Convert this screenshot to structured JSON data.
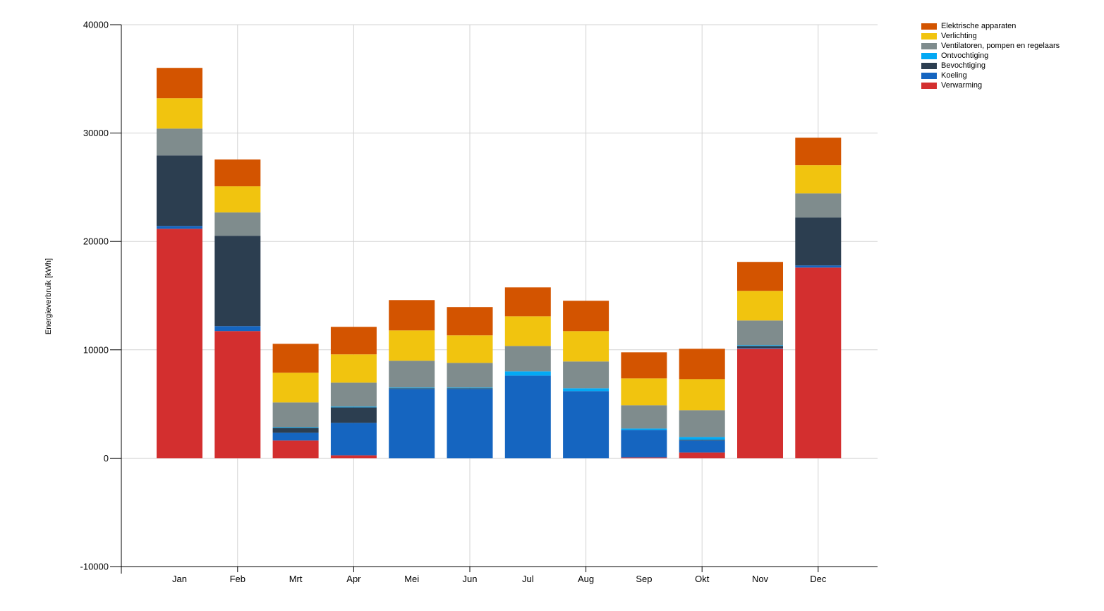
{
  "chart_data": {
    "type": "bar",
    "stacked": true,
    "title": "",
    "xlabel": "",
    "ylabel": "Energieverbruik [kWh]",
    "ylim": [
      -10000,
      40000
    ],
    "yticks": [
      -10000,
      0,
      10000,
      20000,
      30000,
      40000
    ],
    "ytick_labels": [
      "-10000",
      "0",
      "10000",
      "20000",
      "30000",
      "40000"
    ],
    "grid": true,
    "legend_position": "top-right-outside",
    "categories": [
      "Jan",
      "Feb",
      "Mrt",
      "Apr",
      "Mei",
      "Jun",
      "Jul",
      "Aug",
      "Sep",
      "Okt",
      "Nov",
      "Dec"
    ],
    "series": [
      {
        "name": "Verwarming",
        "color": "#d32f2f",
        "values": [
          21170,
          11730,
          1630,
          260,
          0,
          0,
          0,
          0,
          65,
          520,
          10100,
          17590
        ]
      },
      {
        "name": "Koeling",
        "color": "#1565c0",
        "values": [
          260,
          455,
          715,
          3000,
          6385,
          6385,
          7620,
          6190,
          2540,
          1110,
          65,
          195
        ]
      },
      {
        "name": "Bevochtiging",
        "color": "#2c3e50",
        "values": [
          6510,
          8340,
          455,
          1430,
          65,
          65,
          0,
          0,
          0,
          65,
          195,
          4430
        ]
      },
      {
        "name": "Ontvochtiging",
        "color": "#03a9f4",
        "values": [
          0,
          0,
          65,
          65,
          65,
          65,
          390,
          260,
          130,
          260,
          65,
          0
        ]
      },
      {
        "name": "Ventilatoren, pompen en regelaars",
        "color": "#7f8c8d",
        "values": [
          2475,
          2150,
          2280,
          2215,
          2475,
          2280,
          2345,
          2475,
          2150,
          2475,
          2280,
          2215
        ]
      },
      {
        "name": "Verlichting",
        "color": "#f1c40f",
        "values": [
          2800,
          2410,
          2740,
          2610,
          2800,
          2540,
          2735,
          2800,
          2475,
          2865,
          2735,
          2605
        ]
      },
      {
        "name": "Elektrische apparaten",
        "color": "#d35400",
        "values": [
          2800,
          2475,
          2670,
          2540,
          2800,
          2610,
          2670,
          2800,
          2410,
          2800,
          2670,
          2540
        ]
      }
    ]
  },
  "legend": {
    "items": [
      {
        "label": "Elektrische apparaten",
        "color": "#d35400"
      },
      {
        "label": "Verlichting",
        "color": "#f1c40f"
      },
      {
        "label": "Ventilatoren, pompen en regelaars",
        "color": "#7f8c8d"
      },
      {
        "label": "Ontvochtiging",
        "color": "#03a9f4"
      },
      {
        "label": "Bevochtiging",
        "color": "#2c3e50"
      },
      {
        "label": "Koeling",
        "color": "#1565c0"
      },
      {
        "label": "Verwarming",
        "color": "#d32f2f"
      }
    ]
  }
}
